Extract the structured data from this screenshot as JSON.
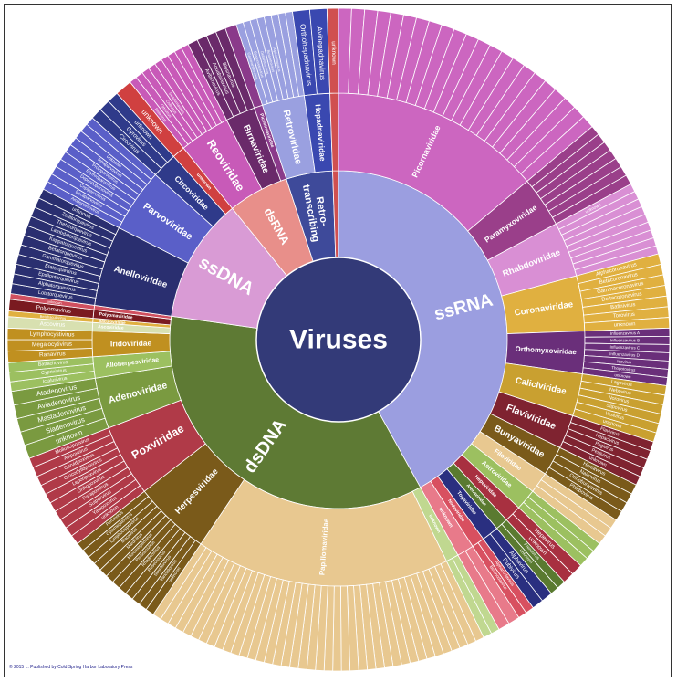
{
  "title": "Viruses",
  "credit": "© 2015 ... Published by Cold Spring Harbor Laboratory Press",
  "center_color": "#333a78",
  "groups": [
    {
      "name": "ssRNA",
      "color": "#9b9ee0",
      "span": 151,
      "families": [
        {
          "name": "Picornaviridae",
          "color": "#cc66c0",
          "span": 50,
          "genera": [],
          "unlabeled": 22
        },
        {
          "name": "Paramyxoviridae",
          "color": "#9a3f8a",
          "span": 12,
          "genera": [],
          "unlabeled": 7
        },
        {
          "name": "Rhabdoviridae",
          "color": "#d98fd4",
          "span": 13,
          "genera": [
            "unknown"
          ],
          "unlabeled": 8
        },
        {
          "name": "Coronaviridae",
          "color": "#e0b040",
          "span": 13,
          "genera": [
            "Alphacoronavirus",
            "Betacoronavirus",
            "Gammacoronavirus",
            "Deltacoronavirus",
            "Bafinivirus",
            "Torovirus",
            "unknown"
          ],
          "unlabeled": 0
        },
        {
          "name": "Orthomyxoviridae",
          "color": "#6a2f7a",
          "span": 10,
          "genera": [
            "Influenzavirus A",
            "Influenzavirus B",
            "Influenzavirus C",
            "Influenzavirus D",
            "Isavirus",
            "Thogotovirus",
            "unknown"
          ],
          "unlabeled": 0
        },
        {
          "name": "Caliciviridae",
          "color": "#c9a030",
          "span": 10,
          "genera": [
            "Lagovirus",
            "Nebovirus",
            "Norovirus",
            "Sapovirus",
            "Vesivirus",
            "unknown"
          ],
          "unlabeled": 0
        },
        {
          "name": "Flaviviridae",
          "color": "#7f2330",
          "span": 8,
          "genera": [
            "Flavivirus",
            "Hepacivirus",
            "Pegivirus",
            "Pestivirus",
            "unknown"
          ],
          "unlabeled": 0
        },
        {
          "name": "Bunyaviridae",
          "color": "#7a5a1a",
          "span": 7,
          "genera": [
            "Hantavirus",
            "Nairovirus",
            "Orthobunyavirus",
            "Phlebovirus"
          ],
          "unlabeled": 0
        },
        {
          "name": "Filoviridae",
          "color": "#e8c890",
          "span": 5,
          "genera": [],
          "unlabeled": 3
        },
        {
          "name": "Astroviridae",
          "color": "#9cc060",
          "span": 5,
          "genera": [],
          "unlabeled": 3
        },
        {
          "name": "Hepeviridae",
          "color": "#a83040",
          "span": 4,
          "genera": [
            "Hepevirus",
            "unknown"
          ],
          "unlabeled": 0
        },
        {
          "name": "Arenaviridae",
          "color": "#5a7a30",
          "span": 3,
          "genera": [
            "Arenavirus",
            "unknown"
          ],
          "unlabeled": 0
        },
        {
          "name": "Togaviridae",
          "color": "#2a2f80",
          "span": 4,
          "genera": [
            "Alphavirus",
            "Rubivirus"
          ],
          "unlabeled": 0
        },
        {
          "name": "Nodaviridae",
          "color": "#d85060",
          "span": 3,
          "genera": [
            "Alphanodavirus",
            "Betanodavirus"
          ],
          "unlabeled": 0
        },
        {
          "name": "unknown",
          "color": "#e87a8a",
          "span": 4,
          "genera": [],
          "unlabeled": 2
        }
      ]
    },
    {
      "name": "dsDNA",
      "color": "#5e7a34",
      "span": 127,
      "families": [
        {
          "name": "unknown",
          "color": "#c0d890",
          "span": 3,
          "genera": [],
          "unlabeled": 2
        },
        {
          "name": "Papillomaviridae",
          "color": "#e8c890",
          "span": 60,
          "genera": [],
          "unlabeled": 40
        },
        {
          "name": "Herpesviridae",
          "color": "#7a5a1a",
          "span": 18,
          "genera": [
            "unknown",
            "Varicellovirus",
            "Simplexvirus",
            "Roseolovirus",
            "Rhadinovirus",
            "Proboscivirus",
            "Muromegalovirus",
            "Mardivirus",
            "Macavirus",
            "Lymphocryptovirus",
            "Cytomegalovirus",
            "Percavirus"
          ],
          "unlabeled": 0
        },
        {
          "name": "Poxviridae",
          "color": "#b03a48",
          "span": 17,
          "genera": [
            "unknown",
            "Yatapoxvirus",
            "Suipoxvirus",
            "Parapoxvirus",
            "Orthopoxvirus",
            "Leporipoxvirus",
            "Crocodylidpoxvirus",
            "Cervidpoxvirus",
            "Avipoxvirus",
            "Molluscipoxvirus"
          ],
          "unlabeled": 0
        },
        {
          "name": "Adenoviridae",
          "color": "#7a9a40",
          "span": 12,
          "genera": [
            "unknown",
            "Siadenovirus",
            "Mastadenovirus",
            "Aviadenovirus",
            "Atadenovirus"
          ],
          "unlabeled": 0
        },
        {
          "name": "Alloherpesviridae",
          "color": "#9cc060",
          "span": 5,
          "genera": [
            "Ictalurivirus",
            "Cyprinivirus",
            "Batrachovirus"
          ],
          "unlabeled": 0
        },
        {
          "name": "Iridoviridae",
          "color": "#c09020",
          "span": 6,
          "genera": [
            "Ranavirus",
            "Megalocytivirus",
            "Lymphocystivirus"
          ],
          "unlabeled": 0
        },
        {
          "name": "Ascoviridae",
          "color": "#d8e0b0",
          "span": 2,
          "genera": [
            "Ascovirus"
          ],
          "unlabeled": 0
        },
        {
          "name": "Baculoviridae",
          "color": "#e0b040",
          "span": 1,
          "genera": [
            "Betabaculovirus"
          ],
          "unlabeled": 0
        },
        {
          "name": "Polyomaviridae",
          "color": "#7a1a20",
          "span": 2,
          "genera": [
            "Polyomavirus"
          ],
          "unlabeled": 0
        },
        {
          "name": "unknown",
          "color": "#d05060",
          "span": 1,
          "genera": [
            "unknown"
          ],
          "unlabeled": 0
        }
      ]
    },
    {
      "name": "ssDNA",
      "color": "#d99bd5",
      "span": 43,
      "families": [
        {
          "name": "Anelloviridae",
          "color": "#2a2f70",
          "span": 19,
          "genera": [
            "Lotatorquevirus",
            "Alphatorquevirus",
            "Epsilontorquevirus",
            "Etatorquevirus",
            "Gammatorquevirus",
            "Betatorquevirus",
            "Kappatorquevirus",
            "Lambdatorquevirus",
            "Thetatorquevirus",
            "Zetatorquevirus",
            "unknown"
          ],
          "unlabeled": 0
        },
        {
          "name": "Parvoviridae",
          "color": "#5a5fc8",
          "span": 15,
          "genera": [
            "Amdoparvovirus",
            "Bocaparvovirus",
            "Copiparvovirus",
            "Dependoparvovirus",
            "Erythroparvovirus",
            "Protoparvovirus",
            "Tetraparvovirus",
            "unknown"
          ],
          "unlabeled": 2
        },
        {
          "name": "Circoviridae",
          "color": "#2f3a8a",
          "span": 6,
          "genera": [
            "Circovirus",
            "Gyrovirus",
            "unknown"
          ],
          "unlabeled": 0
        },
        {
          "name": "unknown",
          "color": "#d04040",
          "span": 3,
          "genera": [
            "unknown"
          ],
          "unlabeled": 0
        }
      ]
    },
    {
      "name": "dsRNA",
      "color": "#e88f8a",
      "span": 21,
      "families": [
        {
          "name": "Reoviridae",
          "color": "#c85ab8",
          "span": 12,
          "genera": [
            "Rotavirus",
            "Orbivirus",
            "Coltivirus",
            "Seadornavirus"
          ],
          "unlabeled": 5
        },
        {
          "name": "Birnaviridae",
          "color": "#6a2a6a",
          "span": 7,
          "genera": [
            "Avibirnavirus",
            "Aquabirnavirus",
            "Blosnavirus"
          ],
          "unlabeled": 1
        },
        {
          "name": "Picobirnaviridae",
          "color": "#8a3a8a",
          "span": 2,
          "genera": [],
          "unlabeled": 1
        }
      ]
    },
    {
      "name": "Retro-transcribing",
      "color": "#3e4a9a",
      "span": 16,
      "families": [
        {
          "name": "Retroviridae",
          "color": "#9aa0e0",
          "span": 10,
          "genera": [
            "Gammaretrovirus",
            "Epsilonretrovirus",
            "Deltaretrovirus",
            "Betaretrovirus",
            "Alpharetrovirus"
          ],
          "unlabeled": 3
        },
        {
          "name": "Hepadnaviridae",
          "color": "#3a48b0",
          "span": 6,
          "genera": [
            "Orthohepadnavirus",
            "Avihepadnavirus"
          ],
          "unlabeled": 0
        }
      ]
    },
    {
      "name": "unknown",
      "color": "#d05050",
      "span": 2,
      "families": [
        {
          "name": "unknown",
          "color": "#d05050",
          "span": 2,
          "genera": [
            "unknown"
          ],
          "unlabeled": 0
        }
      ]
    }
  ]
}
